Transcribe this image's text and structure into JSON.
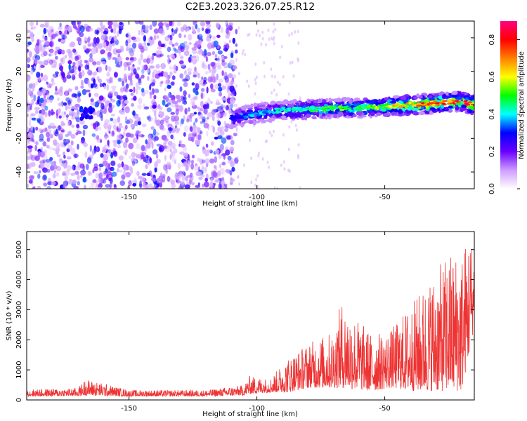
{
  "title": "C2E3.2023.326.07.25.R12",
  "chart_data": [
    {
      "type": "heatmap",
      "xlabel": "Height of straight line (km)",
      "ylabel": "Frequency (Hz)",
      "xlim": [
        -190,
        -15
      ],
      "ylim": [
        -50,
        50
      ],
      "x_ticks": [
        -150,
        -100,
        -50
      ],
      "y_ticks": [
        -40,
        -20,
        0,
        20,
        40
      ],
      "colorbar": {
        "label": "Normalized spectral amplitude",
        "ticks": [
          "0.0",
          "0.2",
          "0.4",
          "0.6",
          "0.8"
        ],
        "range": [
          0,
          0.9
        ],
        "colors": [
          "#ffffff",
          "#ce9cff",
          "#6a00ff",
          "#0000ff",
          "#00ffff",
          "#00ff00",
          "#ffff00",
          "#ff8000",
          "#ff0000",
          "#ff0080"
        ]
      },
      "noise_region_x": [
        -190,
        -108
      ],
      "ridge": [
        {
          "x": -110,
          "y": -8,
          "amp": 0.35
        },
        {
          "x": -100,
          "y": -5,
          "amp": 0.4
        },
        {
          "x": -90,
          "y": -3,
          "amp": 0.45
        },
        {
          "x": -80,
          "y": -3,
          "amp": 0.5
        },
        {
          "x": -70,
          "y": -2,
          "amp": 0.55
        },
        {
          "x": -60,
          "y": -2,
          "amp": 0.55
        },
        {
          "x": -50,
          "y": -1,
          "amp": 0.6
        },
        {
          "x": -40,
          "y": 0,
          "amp": 0.75
        },
        {
          "x": -30,
          "y": 1,
          "amp": 0.8
        },
        {
          "x": -20,
          "y": 2,
          "amp": 0.85
        },
        {
          "x": -15,
          "y": 0,
          "amp": 0.8
        }
      ],
      "hotspot": {
        "x": -167,
        "y": -5
      }
    },
    {
      "type": "line",
      "xlabel": "Height of straight line (km)",
      "ylabel": "SNR (10 * v/v)",
      "xlim": [
        -190,
        -15
      ],
      "ylim": [
        0,
        5600
      ],
      "x_ticks": [
        -150,
        -100,
        -50
      ],
      "y_ticks": [
        0,
        1000,
        2000,
        3000,
        4000,
        5000
      ],
      "line_color": "#ee3333",
      "envelope": [
        {
          "x": -190,
          "base": 120,
          "peak": 350
        },
        {
          "x": -170,
          "base": 130,
          "peak": 400
        },
        {
          "x": -167,
          "base": 150,
          "peak": 700
        },
        {
          "x": -150,
          "base": 120,
          "peak": 330
        },
        {
          "x": -120,
          "base": 120,
          "peak": 330
        },
        {
          "x": -105,
          "base": 150,
          "peak": 500
        },
        {
          "x": -103,
          "base": 200,
          "peak": 800
        },
        {
          "x": -95,
          "base": 250,
          "peak": 700
        },
        {
          "x": -88,
          "base": 250,
          "peak": 1400
        },
        {
          "x": -80,
          "base": 400,
          "peak": 1900
        },
        {
          "x": -70,
          "base": 400,
          "peak": 2300
        },
        {
          "x": -67,
          "base": 400,
          "peak": 3300
        },
        {
          "x": -55,
          "base": 300,
          "peak": 2200
        },
        {
          "x": -48,
          "base": 400,
          "peak": 2300
        },
        {
          "x": -38,
          "base": 300,
          "peak": 3400
        },
        {
          "x": -30,
          "base": 300,
          "peak": 4300
        },
        {
          "x": -24,
          "base": 300,
          "peak": 5000
        },
        {
          "x": -20,
          "base": 300,
          "peak": 5000
        },
        {
          "x": -17,
          "base": 1500,
          "peak": 5600
        },
        {
          "x": -15,
          "base": 2500,
          "peak": 5000
        }
      ]
    }
  ]
}
